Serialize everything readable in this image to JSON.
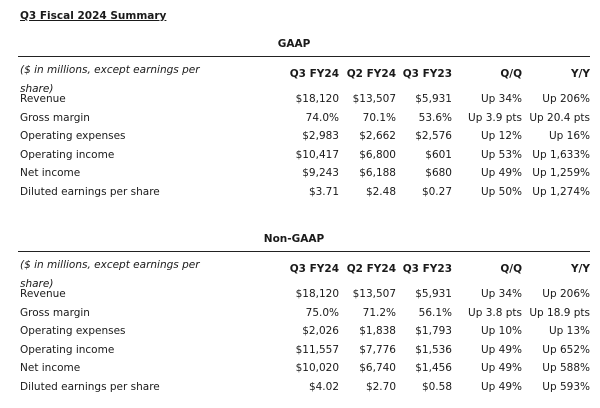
{
  "title": "Q3 Fiscal 2024 Summary",
  "columns": [
    "Q3 FY24",
    "Q2 FY24",
    "Q3 FY23",
    "Q/Q",
    "Y/Y"
  ],
  "units_note": "($ in millions, except earnings per share)",
  "sections": [
    {
      "heading": "GAAP",
      "rows": [
        {
          "label": "Revenue",
          "values": [
            "$18,120",
            "$13,507",
            "$5,931",
            "Up 34%",
            "Up 206%"
          ]
        },
        {
          "label": "Gross margin",
          "values": [
            "74.0%",
            "70.1%",
            "53.6%",
            "Up 3.9 pts",
            "Up 20.4 pts"
          ]
        },
        {
          "label": "Operating expenses",
          "values": [
            "$2,983",
            "$2,662",
            "$2,576",
            "Up 12%",
            "Up 16%"
          ]
        },
        {
          "label": "Operating income",
          "values": [
            "$10,417",
            "$6,800",
            "$601",
            "Up 53%",
            "Up 1,633%"
          ]
        },
        {
          "label": "Net income",
          "values": [
            "$9,243",
            "$6,188",
            "$680",
            "Up 49%",
            "Up 1,259%"
          ]
        },
        {
          "label": "Diluted earnings per share",
          "values": [
            "$3.71",
            "$2.48",
            "$0.27",
            "Up 50%",
            "Up 1,274%"
          ]
        }
      ]
    },
    {
      "heading": "Non-GAAP",
      "rows": [
        {
          "label": "Revenue",
          "values": [
            "$18,120",
            "$13,507",
            "$5,931",
            "Up 34%",
            "Up 206%"
          ]
        },
        {
          "label": "Gross margin",
          "values": [
            "75.0%",
            "71.2%",
            "56.1%",
            "Up 3.8 pts",
            "Up 18.9 pts"
          ]
        },
        {
          "label": "Operating expenses",
          "values": [
            "$2,026",
            "$1,838",
            "$1,793",
            "Up 10%",
            "Up 13%"
          ]
        },
        {
          "label": "Operating income",
          "values": [
            "$11,557",
            "$7,776",
            "$1,536",
            "Up 49%",
            "Up 652%"
          ]
        },
        {
          "label": "Net income",
          "values": [
            "$10,020",
            "$6,740",
            "$1,456",
            "Up 49%",
            "Up 588%"
          ]
        },
        {
          "label": "Diluted earnings per share",
          "values": [
            "$4.02",
            "$2.70",
            "$0.58",
            "Up 49%",
            "Up 593%"
          ]
        }
      ]
    }
  ]
}
